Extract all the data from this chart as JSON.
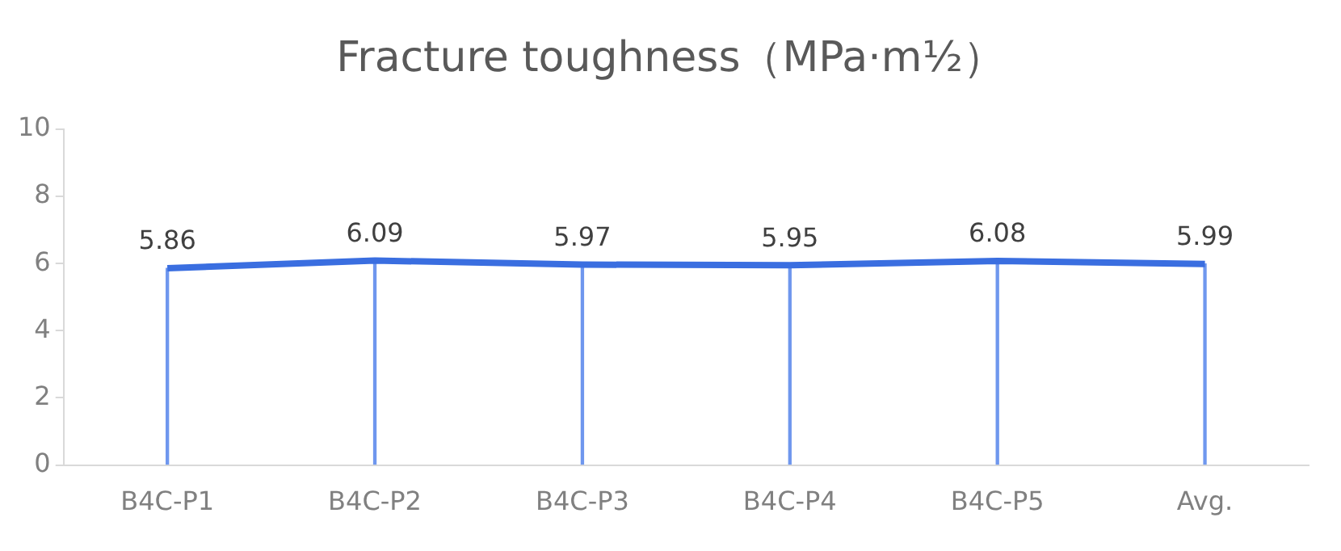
{
  "chart_data": {
    "type": "line",
    "title": "Fracture toughness（MPa·m½）",
    "categories": [
      "B4C-P1",
      "B4C-P2",
      "B4C-P3",
      "B4C-P4",
      "B4C-P5",
      "Avg."
    ],
    "series": [
      {
        "color": "#3a6ee0",
        "values": [
          5.86,
          6.09,
          5.97,
          5.95,
          6.08,
          5.99
        ],
        "value_labels": [
          "5.86",
          "6.09",
          "5.97",
          "5.95",
          "6.08",
          "5.99"
        ]
      },
      {
        "type": "bar",
        "color": "#6f97ee",
        "values": [
          5.86,
          6.09,
          5.97,
          5.95,
          6.08,
          5.99
        ]
      }
    ],
    "ylim": [
      0,
      10
    ],
    "yticks": [
      0,
      2,
      4,
      6,
      8,
      10
    ],
    "grid": false,
    "legend": false,
    "marker": "none"
  }
}
